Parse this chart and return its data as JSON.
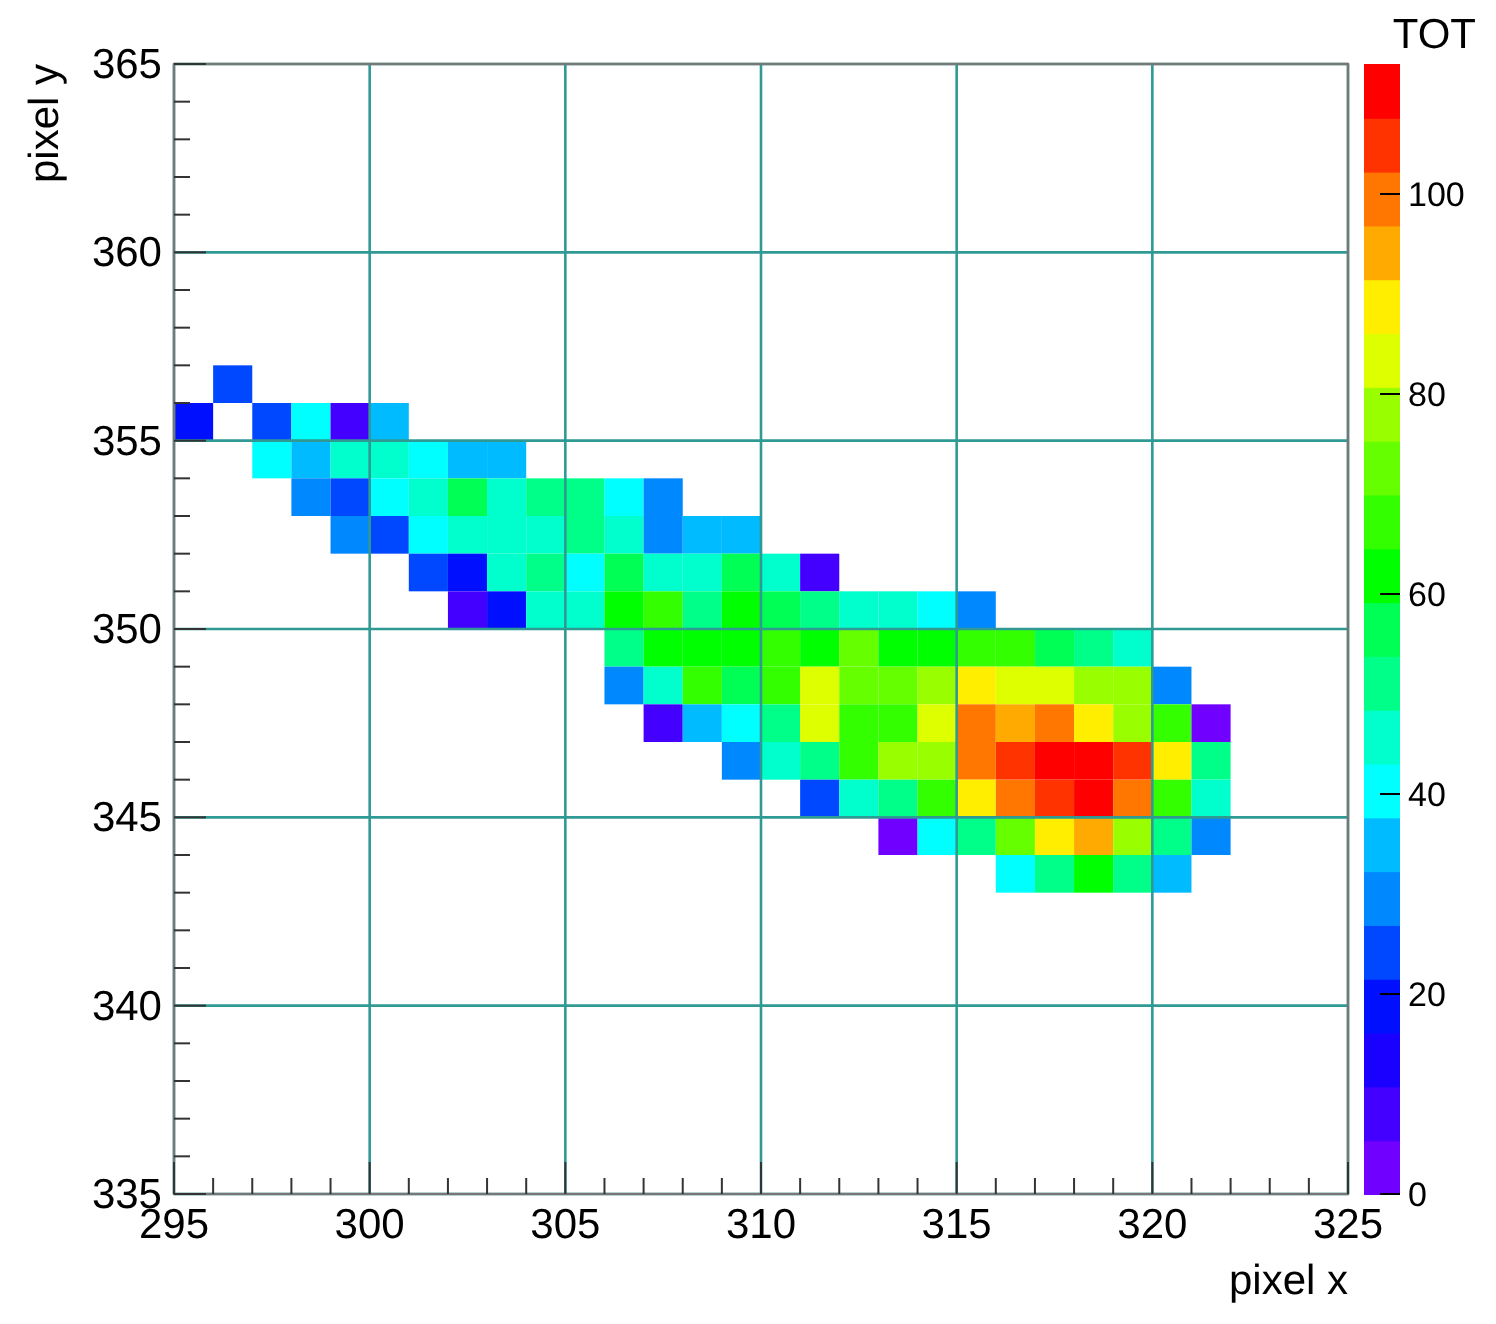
{
  "chart_data": {
    "type": "heatmap",
    "xlabel": "pixel x",
    "ylabel": "pixel y",
    "clabel": "TOT",
    "x": [
      295.5,
      296.5,
      297.5,
      298.5,
      299.5,
      300.5,
      301.5,
      302.5,
      303.5,
      304.5,
      305.5,
      306.5,
      307.5,
      308.5,
      309.5,
      310.5,
      311.5,
      312.5,
      313.5,
      314.5,
      315.5,
      316.5,
      317.5,
      318.5,
      319.5,
      320.5,
      321.5
    ],
    "y": [
      356.5,
      355.5,
      354.5,
      353.5,
      352.5,
      351.5,
      350.5,
      349.5,
      348.5,
      347.5,
      346.5,
      345.5,
      344.5,
      343.5
    ],
    "xlim": [
      295,
      325
    ],
    "xticks": [
      295,
      300,
      305,
      310,
      315,
      320,
      325
    ],
    "ylim": [
      335,
      365
    ],
    "yticks": [
      335,
      340,
      345,
      350,
      355,
      360,
      365
    ],
    "clim": [
      0,
      113
    ],
    "cticks": [
      0,
      20,
      40,
      60,
      80,
      100
    ],
    "grid": true,
    "cells": [
      [
        null,
        24,
        null,
        null,
        null,
        null,
        null,
        null,
        null,
        null,
        null,
        null,
        null,
        null,
        null,
        null,
        null,
        null,
        null,
        null,
        null,
        null,
        null,
        null,
        null,
        null,
        null
      ],
      [
        19,
        null,
        24,
        40,
        8,
        35,
        null,
        null,
        null,
        null,
        null,
        null,
        null,
        null,
        null,
        null,
        null,
        null,
        null,
        null,
        null,
        null,
        null,
        null,
        null,
        null,
        null
      ],
      [
        null,
        null,
        40,
        35,
        46,
        46,
        40,
        35,
        35,
        null,
        null,
        null,
        null,
        null,
        null,
        null,
        null,
        null,
        null,
        null,
        null,
        null,
        null,
        null,
        null,
        null,
        null
      ],
      [
        null,
        null,
        null,
        30,
        24,
        40,
        46,
        56,
        46,
        51,
        51,
        40,
        30,
        null,
        null,
        null,
        null,
        null,
        null,
        null,
        null,
        null,
        null,
        null,
        null,
        null,
        null
      ],
      [
        null,
        null,
        null,
        null,
        30,
        24,
        40,
        46,
        46,
        46,
        51,
        46,
        30,
        35,
        35,
        null,
        null,
        null,
        null,
        null,
        null,
        null,
        null,
        null,
        null,
        null,
        null
      ],
      [
        null,
        null,
        null,
        null,
        null,
        null,
        24,
        19,
        46,
        51,
        40,
        56,
        46,
        46,
        56,
        46,
        8,
        null,
        null,
        null,
        null,
        null,
        null,
        null,
        null,
        null,
        null
      ],
      [
        null,
        null,
        null,
        null,
        null,
        null,
        null,
        8,
        19,
        46,
        46,
        62,
        67,
        51,
        62,
        56,
        51,
        46,
        46,
        40,
        30,
        null,
        null,
        null,
        null,
        null,
        null
      ],
      [
        null,
        null,
        null,
        null,
        null,
        null,
        null,
        null,
        null,
        null,
        null,
        51,
        62,
        62,
        62,
        67,
        62,
        73,
        62,
        62,
        67,
        67,
        56,
        51,
        46,
        null,
        null
      ],
      [
        null,
        null,
        null,
        null,
        null,
        null,
        null,
        null,
        null,
        null,
        null,
        30,
        46,
        67,
        56,
        67,
        83,
        73,
        73,
        78,
        89,
        83,
        83,
        78,
        78,
        30,
        null
      ],
      [
        null,
        null,
        null,
        null,
        null,
        null,
        null,
        null,
        null,
        null,
        null,
        null,
        8,
        35,
        40,
        51,
        83,
        67,
        67,
        83,
        100,
        94,
        100,
        89,
        78,
        67,
        3
      ],
      [
        null,
        null,
        null,
        null,
        null,
        null,
        null,
        null,
        null,
        null,
        null,
        null,
        null,
        null,
        30,
        46,
        51,
        67,
        78,
        78,
        100,
        105,
        110,
        110,
        105,
        89,
        51
      ],
      [
        null,
        null,
        null,
        null,
        null,
        null,
        null,
        null,
        null,
        null,
        null,
        null,
        null,
        null,
        null,
        null,
        24,
        46,
        51,
        67,
        89,
        100,
        105,
        110,
        100,
        67,
        46
      ],
      [
        null,
        null,
        null,
        null,
        null,
        null,
        null,
        null,
        null,
        null,
        null,
        null,
        null,
        null,
        null,
        null,
        null,
        null,
        3,
        40,
        51,
        73,
        89,
        94,
        78,
        51,
        30
      ],
      [
        null,
        null,
        null,
        null,
        null,
        null,
        null,
        null,
        null,
        null,
        null,
        null,
        null,
        null,
        null,
        null,
        null,
        null,
        null,
        null,
        null,
        40,
        51,
        62,
        51,
        35,
        null
      ]
    ]
  }
}
